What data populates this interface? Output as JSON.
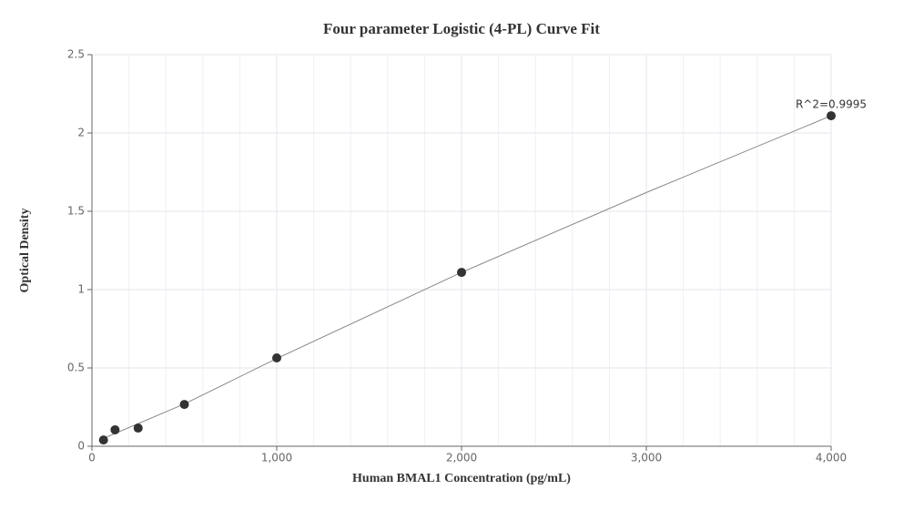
{
  "chart_data": {
    "type": "scatter",
    "title": "Four parameter Logistic (4-PL) Curve Fit",
    "x_label": "Human BMAL1 Concentration (pg/mL)",
    "y_label": "Optical Density",
    "annotation": "R^2=0.9995",
    "x": [
      62.5,
      125,
      250,
      500,
      1000,
      2000,
      4000
    ],
    "values": [
      0.04,
      0.105,
      0.116,
      0.267,
      0.564,
      1.11,
      2.11
    ],
    "color": "#333333",
    "fit": {
      "x": [
        62.5,
        500,
        1000,
        2000,
        3000,
        4000
      ],
      "values": [
        0.05,
        0.27,
        0.56,
        1.11,
        1.62,
        2.11
      ],
      "color": "#888888"
    },
    "xlim": [
      0,
      4000
    ],
    "xticks": [
      0,
      {
        "value": 1000,
        "label": "1,000"
      },
      {
        "value": 2000,
        "label": "2,000"
      },
      {
        "value": 3000,
        "label": "3,000"
      },
      {
        "value": 4000,
        "label": "4,000"
      }
    ],
    "ylim": [
      0,
      2.5
    ],
    "yticks": [
      0,
      0.5,
      1,
      1.5,
      2,
      2.5
    ],
    "grid": true
  }
}
